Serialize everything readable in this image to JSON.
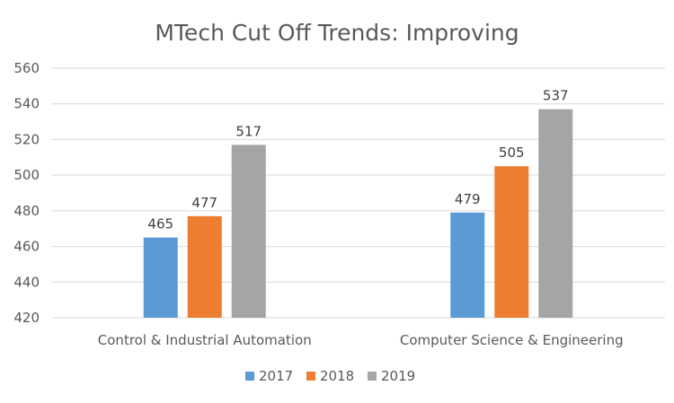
{
  "chart_data": {
    "type": "bar",
    "title": "MTech Cut Off Trends: Improving",
    "categories": [
      "Control & Industrial Automation",
      "Computer Science & Engineering"
    ],
    "series": [
      {
        "name": "2017",
        "values": [
          465,
          479
        ],
        "color": "#5b9bd5"
      },
      {
        "name": "2018",
        "values": [
          477,
          505
        ],
        "color": "#ed7d31"
      },
      {
        "name": "2019",
        "values": [
          517,
          537
        ],
        "color": "#a5a5a5"
      }
    ],
    "xlabel": "",
    "ylabel": "",
    "ylim": [
      420,
      560
    ],
    "yticks": [
      420,
      440,
      460,
      480,
      500,
      520,
      540,
      560
    ],
    "grid": true,
    "legend": "bottom"
  }
}
